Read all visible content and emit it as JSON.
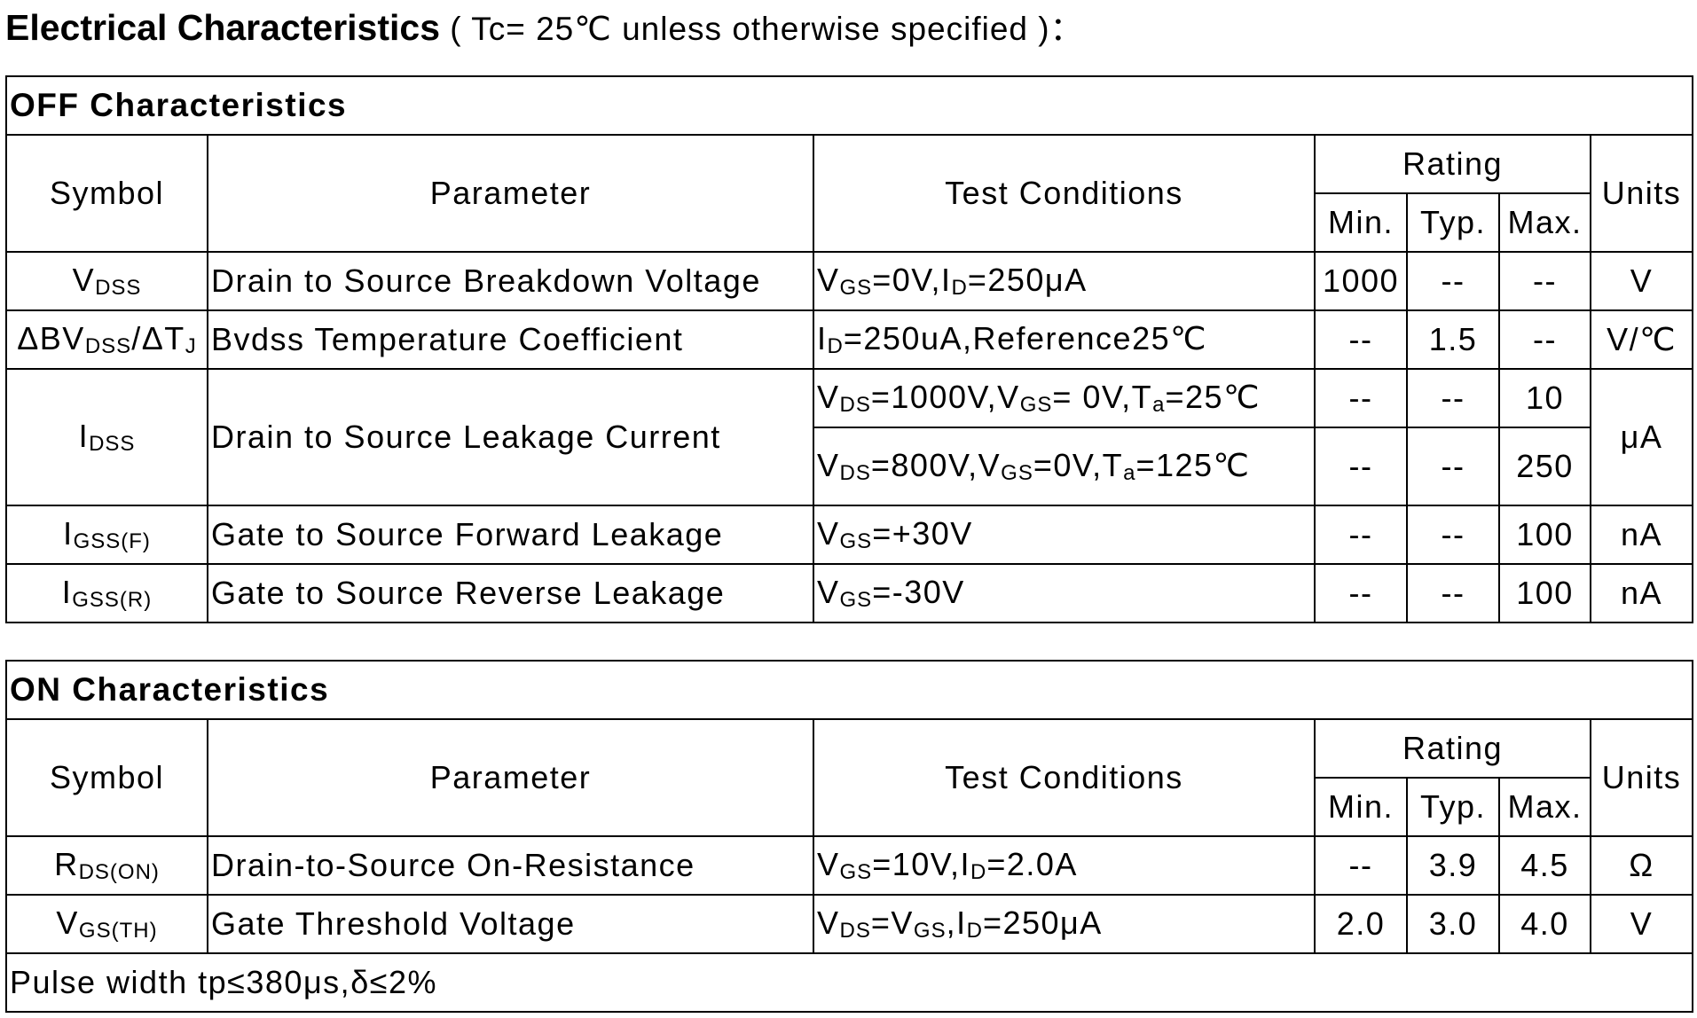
{
  "header": {
    "title": "Electrical Characteristics",
    "condition": "( Tc= 25℃  unless otherwise specified )："
  },
  "tables": [
    {
      "section": "OFF Characteristics",
      "columns": {
        "symbol": "Symbol",
        "parameter": "Parameter",
        "test_conditions": "Test Conditions",
        "rating": "Rating",
        "min": "Min.",
        "typ": "Typ.",
        "max": "Max.",
        "units": "Units"
      },
      "rows": [
        {
          "symbol": [
            "V",
            {
              "sub": "DSS"
            }
          ],
          "parameter": "Drain to Source Breakdown Voltage",
          "conditions": [
            {
              "text": [
                "V",
                {
                  "sub": "GS"
                },
                "=0V,I",
                {
                  "sub": "D"
                },
                "=250μA"
              ],
              "min": "1000",
              "typ": "--",
              "max": "--"
            }
          ],
          "units": "V"
        },
        {
          "symbol": [
            "ΔBV",
            {
              "sub": "DSS"
            },
            "/ΔT",
            {
              "sub": "J"
            }
          ],
          "parameter": "Bvdss Temperature Coefficient",
          "conditions": [
            {
              "text": [
                "I",
                {
                  "sub": "D"
                },
                "=250uA,Reference25℃"
              ],
              "min": "--",
              "typ": "1.5",
              "max": "--"
            }
          ],
          "units": "V/℃"
        },
        {
          "symbol": [
            "I",
            {
              "sub": "DSS"
            }
          ],
          "parameter": "Drain to Source Leakage Current",
          "conditions": [
            {
              "text": [
                "V",
                {
                  "sub": "DS"
                },
                "=1000V,V",
                {
                  "sub": "GS"
                },
                "= 0V,T",
                {
                  "sub": "a"
                },
                "=25℃"
              ],
              "min": "--",
              "typ": "--",
              "max": "10"
            },
            {
              "text": [
                "V",
                {
                  "sub": "DS"
                },
                "=800V,V",
                {
                  "sub": "GS"
                },
                "=0V,T",
                {
                  "sub": "a"
                },
                "=125℃"
              ],
              "min": "--",
              "typ": "--",
              "max": "250"
            }
          ],
          "units": "μA"
        },
        {
          "symbol": [
            "I",
            {
              "sub": "GSS(F)"
            }
          ],
          "parameter": "Gate to Source Forward Leakage",
          "conditions": [
            {
              "text": [
                "V",
                {
                  "sub": "GS"
                },
                "=+30V"
              ],
              "min": "--",
              "typ": "--",
              "max": "100"
            }
          ],
          "units": "nA"
        },
        {
          "symbol": [
            "I",
            {
              "sub": "GSS(R)"
            }
          ],
          "parameter": "Gate to Source Reverse Leakage",
          "conditions": [
            {
              "text": [
                "V",
                {
                  "sub": "GS"
                },
                "=-30V"
              ],
              "min": "--",
              "typ": "--",
              "max": "100"
            }
          ],
          "units": "nA"
        }
      ]
    },
    {
      "section": "ON Characteristics",
      "columns": {
        "symbol": "Symbol",
        "parameter": "Parameter",
        "test_conditions": "Test Conditions",
        "rating": "Rating",
        "min": "Min.",
        "typ": "Typ.",
        "max": "Max.",
        "units": "Units"
      },
      "rows": [
        {
          "symbol": [
            "R",
            {
              "sub": "DS(ON)"
            }
          ],
          "parameter": "Drain-to-Source On-Resistance",
          "conditions": [
            {
              "text": [
                "V",
                {
                  "sub": "GS"
                },
                "=10V,I",
                {
                  "sub": "D"
                },
                "=2.0A"
              ],
              "min": "--",
              "typ": "3.9",
              "max": "4.5"
            }
          ],
          "units": "Ω"
        },
        {
          "symbol": [
            "V",
            {
              "sub": "GS(TH)"
            }
          ],
          "parameter": "Gate Threshold Voltage",
          "conditions": [
            {
              "text": [
                "V",
                {
                  "sub": "DS"
                },
                "=V",
                {
                  "sub": "GS"
                },
                ",I",
                {
                  "sub": "D"
                },
                "=250μA"
              ],
              "min": "2.0",
              "typ": "3.0",
              "max": "4.0"
            }
          ],
          "units": "V"
        }
      ],
      "footnote": "Pulse width tp≤380μs,δ≤2%"
    }
  ]
}
